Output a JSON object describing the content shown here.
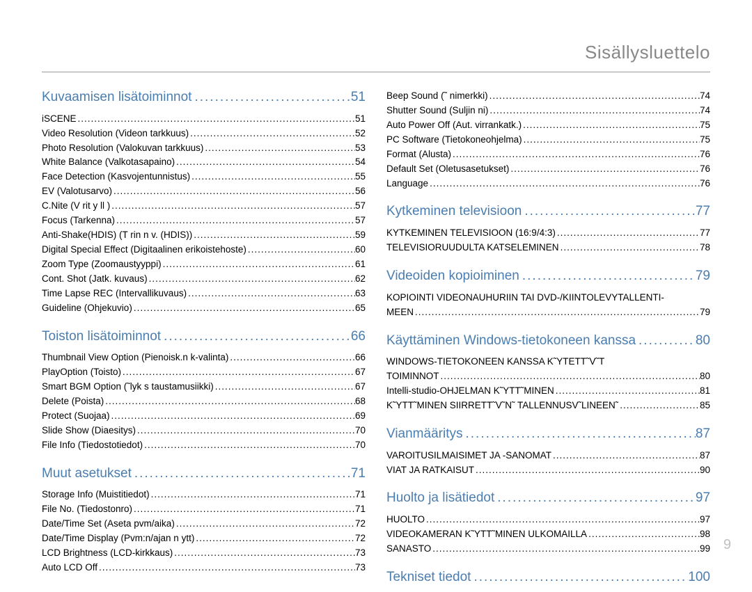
{
  "page_title": "Sisällysluettelo",
  "page_number": "9",
  "colors": {
    "section_heading": "#4a7db0",
    "page_title_gray": "#888888",
    "text": "#000000",
    "page_num_gray": "#c0c0c0"
  },
  "columns": [
    {
      "sections": [
        {
          "title": "Kuvaamisen lisätoiminnot",
          "page": "51",
          "entries": [
            {
              "label": "iSCENE",
              "page": "51"
            },
            {
              "label": "Video Resolution (Videon tarkkuus)",
              "page": "52"
            },
            {
              "label": "Photo Resolution (Valokuvan tarkkuus)",
              "page": "53"
            },
            {
              "label": "White Balance (Valkotasapaino)",
              "page": "54"
            },
            {
              "label": "Face Detection (Kasvojentunnistus)",
              "page": "55"
            },
            {
              "label": "EV (Valotusarvo)",
              "page": "56"
            },
            {
              "label": "C.Nite (V rit y ll )",
              "page": "57"
            },
            {
              "label": "Focus (Tarkenna)",
              "page": "57"
            },
            {
              "label": "Anti-Shake(HDIS) (T rin n v. (HDIS))",
              "page": "59"
            },
            {
              "label": "Digital Special Effect (Digitaalinen erikoistehoste)",
              "page": "60"
            },
            {
              "label": "Zoom Type (Zoomaustyyppi)",
              "page": "61"
            },
            {
              "label": "Cont. Shot (Jatk. kuvaus)",
              "page": "62"
            },
            {
              "label": "Time Lapse REC (Intervallikuvaus)",
              "page": "63"
            },
            {
              "label": "Guideline (Ohjekuvio)",
              "page": "65"
            }
          ]
        },
        {
          "title": "Toiston lisätoiminnot",
          "page": "66",
          "entries": [
            {
              "label": "Thumbnail View Option (Pienoisk.n k-valinta)",
              "page": "66"
            },
            {
              "label": "PlayOption (Toisto)",
              "page": "67"
            },
            {
              "label": "Smart BGM Option (˜lyk s taustamusiikki)",
              "page": "67"
            },
            {
              "label": "Delete (Poista)",
              "page": "68"
            },
            {
              "label": "Protect (Suojaa)",
              "page": "69"
            },
            {
              "label": "Slide Show (Diaesitys)",
              "page": "70"
            },
            {
              "label": "File Info (Tiedostotiedot)",
              "page": "70"
            }
          ]
        },
        {
          "title": "Muut asetukset",
          "page": "71",
          "entries": [
            {
              "label": "Storage Info (Muistitiedot)",
              "page": "71"
            },
            {
              "label": "File No. (Tiedostonro)",
              "page": "71"
            },
            {
              "label": "Date/Time Set (Aseta pvm/aika)",
              "page": "72"
            },
            {
              "label": "Date/Time Display (Pvm:n/ajan n ytt)",
              "page": "72"
            },
            {
              "label": "LCD Brightness (LCD-kirkkaus)",
              "page": "73"
            },
            {
              "label": "Auto LCD Off",
              "page": "73"
            }
          ]
        }
      ]
    },
    {
      "sections": [
        {
          "title": "",
          "page": "",
          "continuation": true,
          "entries": [
            {
              "label": "Beep Sound (˜ nimerkki)",
              "page": "74"
            },
            {
              "label": "Shutter Sound (Suljin  ni)",
              "page": "74"
            },
            {
              "label": "Auto Power Off (Aut. virrankatk.)",
              "page": "75"
            },
            {
              "label": "PC Software (Tietokoneohjelma)",
              "page": "75"
            },
            {
              "label": "Format (Alusta)",
              "page": "76"
            },
            {
              "label": "Default Set (Oletusasetukset)",
              "page": "76"
            },
            {
              "label": "Language",
              "page": "76"
            }
          ]
        },
        {
          "title": "Kytkeminen televisioon",
          "page": "77",
          "entries": [
            {
              "label": "KYTKEMINEN TELEVISIOON (16:9/4:3)",
              "page": "77"
            },
            {
              "label": "TELEVISIORUUDULTA KATSELEMINEN",
              "page": "78"
            }
          ]
        },
        {
          "title": "Videoiden kopioiminen",
          "page": "79",
          "entries": [
            {
              "label_cont": "KOPIOINTI VIDEONAUHURIIN TAI DVD-/KIINTOLEVYTALLENTI-"
            },
            {
              "label": "MEEN",
              "page": "79"
            }
          ]
        },
        {
          "title": "Käyttäminen Windows-tietokoneen kanssa",
          "page": "80",
          "entries": [
            {
              "label_cont": "WINDOWS-TIETOKONEEN KANSSA K˜YTETT˜V˜T"
            },
            {
              "label": "TOIMINNOT",
              "page": "80"
            },
            {
              "label": "Intelli-studio-OHJELMAN K˜YTT˜MINEN",
              "page": "81"
            },
            {
              "label": "K˜YTT˜MINEN SIIRRETT˜V˜N˜ TALLENNUSV˜LINEEN˜",
              "page": "85"
            }
          ]
        },
        {
          "title": "Vianmääritys",
          "page": "87",
          "entries": [
            {
              "label": "VAROITUSILMAISIMET JA -SANOMAT",
              "page": "87"
            },
            {
              "label": "VIAT JA RATKAISUT",
              "page": "90"
            }
          ]
        },
        {
          "title": "Huolto ja lisätiedot",
          "page": "97",
          "entries": [
            {
              "label": "HUOLTO",
              "page": "97"
            },
            {
              "label": "VIDEOKAMERAN K˜YTT˜MINEN ULKOMAILLA",
              "page": "98"
            },
            {
              "label": "SANASTO",
              "page": "99"
            }
          ]
        },
        {
          "title": "Tekniset tiedot",
          "page": "100",
          "entries": []
        }
      ]
    }
  ]
}
